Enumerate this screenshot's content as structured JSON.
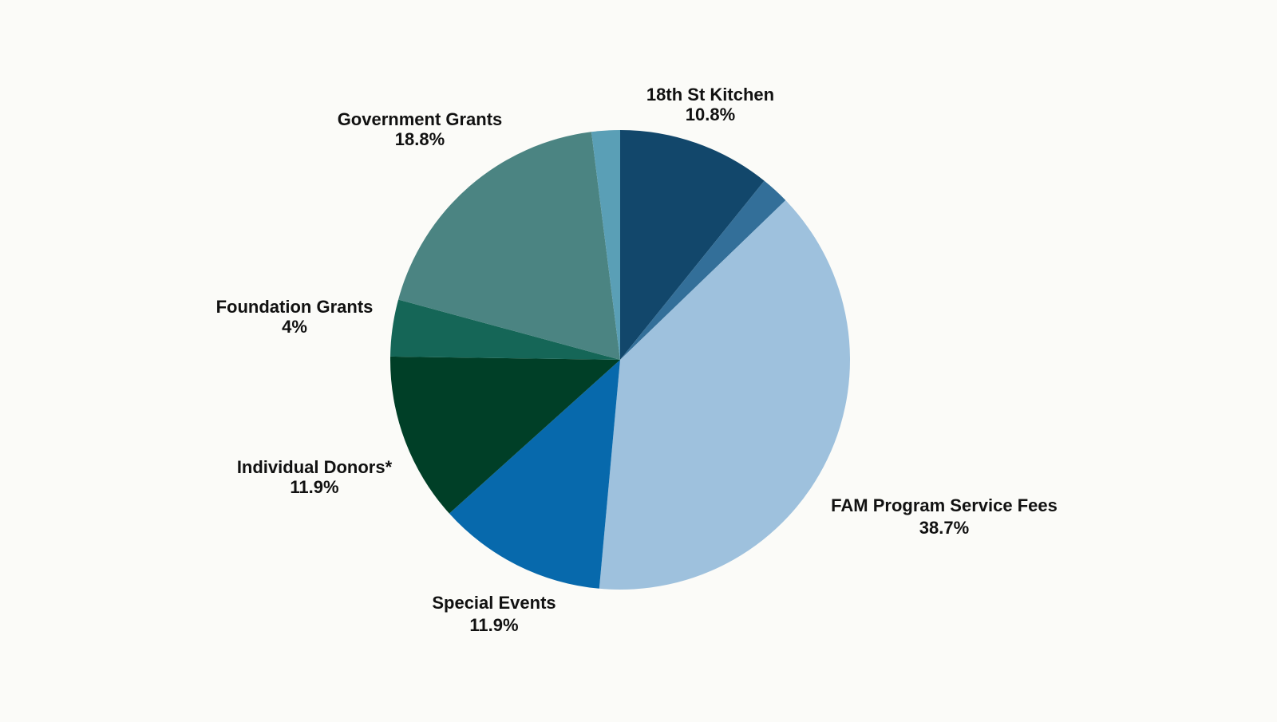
{
  "chart_data": {
    "type": "pie",
    "title": "",
    "slices": [
      {
        "label": "18th St Kitchen",
        "value_label": "10.8%",
        "value": 10.8,
        "color": "#12476b"
      },
      {
        "label": "",
        "value_label": "",
        "value": 2.0,
        "color": "#336f99"
      },
      {
        "label": "FAM Program Service Fees",
        "value_label": "38.7%",
        "value": 38.7,
        "color": "#9ec1dd"
      },
      {
        "label": "Special Events",
        "value_label": "11.9%",
        "value": 11.9,
        "color": "#0769ac"
      },
      {
        "label": "Individual Donors*",
        "value_label": "11.9%",
        "value": 11.9,
        "color": "#003f27"
      },
      {
        "label": "Foundation Grants",
        "value_label": "4%",
        "value": 4,
        "color": "#156657"
      },
      {
        "label": "Government Grants",
        "value_label": "18.8%",
        "value": 18.8,
        "color": "#4b8482"
      },
      {
        "label": "",
        "value_label": "",
        "value": 2.0,
        "color": "#5a9fb6"
      }
    ]
  }
}
